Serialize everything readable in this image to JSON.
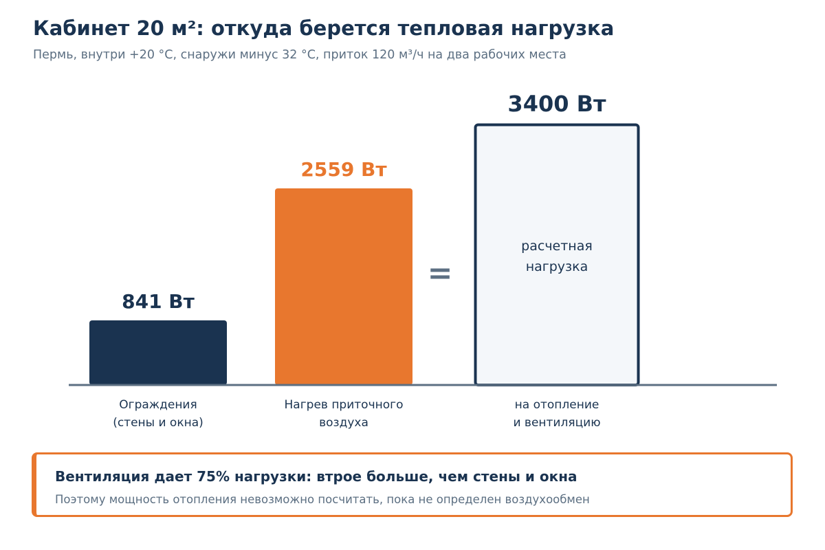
{
  "header": {
    "title": "Кабинет 20 м²: откуда берется тепловая нагрузка",
    "subtitle": "Пермь, внутри +20 °C, снаружи минус 32 °C, приток 120 м³/ч на два рабочих места"
  },
  "chart_data": {
    "type": "bar",
    "title": "Кабинет 20 м²: откуда берется тепловая нагрузка",
    "unit": "Вт",
    "ylim": [
      0,
      3400
    ],
    "grid": false,
    "legend": "none",
    "operator": "=",
    "bars": [
      {
        "value": 841,
        "label": "841 Вт",
        "category": [
          "Ограждения",
          "(стены и окна)"
        ],
        "color": "#1a3350",
        "style": "filled"
      },
      {
        "value": 2559,
        "label": "2559 Вт",
        "category": [
          "Нагрев приточного",
          "воздуха"
        ],
        "color": "#e8772e",
        "style": "filled"
      },
      {
        "value": 3400,
        "label": "3400 Вт",
        "category": [
          "на отопление",
          "и вентиляцию"
        ],
        "color": "#1a3350",
        "style": "outlined",
        "inner_text": [
          "расчетная",
          "нагрузка"
        ]
      }
    ]
  },
  "note": {
    "title": "Вентиляция дает 75% нагрузки: втрое больше, чем стены и окна",
    "text": "Поэтому мощность отопления невозможно посчитать, пока не определен воздухообмен"
  },
  "colors": {
    "navy": "#1a3350",
    "orange": "#e8772e",
    "muted": "#5c6f82",
    "axis": "#5c6f82",
    "outlined_fill": "#f4f7fa"
  }
}
